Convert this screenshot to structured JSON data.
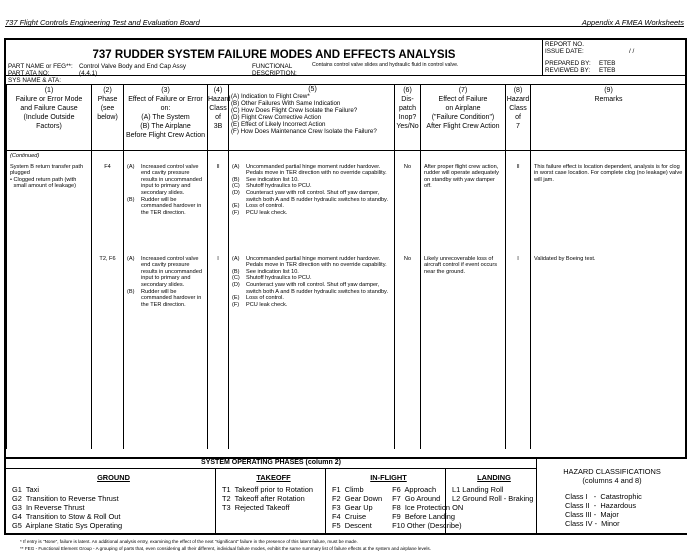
{
  "header": {
    "left": "737 Flight Controls Engineering Test and Evaluation Board",
    "right": "Appendix A   FMEA Worksheets"
  },
  "title": "737 RUDDER SYSTEM FAILURE MODES AND EFFECTS ANALYSIS",
  "fields": {
    "part_name_label": "PART NAME or FEG**:",
    "part_name": "Control Valve Body and End Cap Assy",
    "ata_label": "PART ATA NO:",
    "ata": "(4.4.1)",
    "sys_label": "SYS NAME & ATA:",
    "func_label1": "FUNCTIONAL",
    "func_label2": "DESCRIPTION:",
    "func": "Contains control valve slides and hydraulic fluid in control valve."
  },
  "report": {
    "report_no": "REPORT NO.",
    "issue_label": "ISSUE DATE:",
    "issue": "/   /",
    "prepared_label": "PREPARED BY:",
    "prepared": "ETEB",
    "reviewed_label": "REVIEWED BY:",
    "reviewed": "ETEB"
  },
  "columns": [
    "(1)\nFailure or Error Mode\nand Failure Cause\n(Include Outside\nFactors)",
    "(2)\nPhase\n(see\nbelow)",
    "(3)\nEffect of Failure or Error\non:\n(A)  The System\n(B)  The Airplane\nBefore Flight Crew Action",
    "(4)\nHazard\nClass of\n3B",
    "(A)  Indication to Flight Crew*\n(B)  Other Failures With Same Indication\n(C)  How Does Flight Crew Isolate the Failure?\n(D)  Flight Crew Corrective Action\n(E)  Effect of Likely Incorrect Action\n(F)  How Does Maintenance Crew Isolate the Failure?",
    "(6)\nDis-\npatch\nInop?\nYes/No",
    "(7)\nEffect of Failure\non Airplane\n(\"Failure Condition\")\nAfter Flight Crew Action",
    "(8)\nHazard\nClass of\n7",
    "(9)\nRemarks"
  ],
  "col5_num": "(5)",
  "continued": "(Continued)",
  "rows": [
    {
      "mode": "System B return transfer path plugged",
      "bullet": "Clogged return path (with small amount of leakage)",
      "phase": "F4",
      "effA": "Increased control valve end cavity pressure results in uncommanded input to primary and secondary slides.",
      "effB": "Rudder will be commanded hardover in the TER direction.",
      "haz3": "II",
      "A": "Uncommanded partial hinge moment rudder hardover. Pedals move in TER direction with no override capability.",
      "B": "See indication list 10.",
      "C": "Shutoff hydraulics to PCU.",
      "D": "Counteract yaw with roll control.  Shut off yaw damper, switch both A and B rudder hydraulic switches to standby.",
      "E": "Loss of control.",
      "F": "PCU leak check.",
      "dispatch": "No",
      "eff7": "After proper flight crew action, rudder will operate adequately on standby with yaw damper off.",
      "haz7": "II",
      "remarks": "This failure effect is location dependent, analysis is for clog in worst case location. For complete clog (no leakage) valve will jam."
    },
    {
      "mode": "",
      "bullet": "",
      "phase": "T2, F6",
      "effA": "Increased control valve end cavity pressure results in uncommanded input to primary and secondary slides.",
      "effB": "Rudder will be commanded hardover in the TER direction.",
      "haz3": "I",
      "A": "Uncommanded partial hinge moment rudder hardover. Pedals move in TER direction with no override capability.",
      "B": "See indication list 10.",
      "C": "Shutoff hydraulics to PCU.",
      "D": "Counteract yaw with roll control.  Shut off yaw damper, switch both A and B rudder hydraulic switches to standby.",
      "E": "Loss of control.",
      "F": "PCU leak check.",
      "dispatch": "No",
      "eff7": "Likely unrecoverable loss of aircraft control if event occurs near the ground.",
      "haz7": "I",
      "remarks": "Validated by Boeing test."
    }
  ],
  "phases": {
    "title": "SYSTEM OPERATING PHASES (column 2)",
    "ground": {
      "title": "GROUND",
      "items": [
        "G1  Taxi",
        "G2  Transition to Reverse Thrust",
        "G3  In Reverse Thrust",
        "G4  Transition to Stow & Roll Out",
        "G5  Airplane Static Sys Operating"
      ]
    },
    "takeoff": {
      "title": "TAKEOFF",
      "items": [
        "T1  Takeoff prior to Rotation",
        "T2  Takeoff after Rotation",
        "T3  Rejected Takeoff"
      ]
    },
    "inflight": {
      "title": "IN-FLIGHT",
      "items": [
        "F1  Climb",
        "F2  Gear Down",
        "F3  Gear Up",
        "F4  Cruise",
        "F5  Descent"
      ],
      "items2": [
        "F6  Approach",
        "F7  Go Around",
        "F8  Ice Protection ON",
        "F9  Before Landing",
        "F10 Other (Describe)"
      ]
    },
    "landing": {
      "title": "LANDING",
      "items": [
        "L1 Landing Roll",
        "L2 Ground Roll - Braking"
      ]
    }
  },
  "hazard": {
    "title": "HAZARD CLASSIFICATIONS",
    "subtitle": "(columns 4 and 8)",
    "items": [
      "Class I   -  Catastrophic",
      "Class II  -  Hazardous",
      "Class III -  Major",
      "Class IV -  Minor"
    ]
  },
  "footnotes": [
    "*  If entry is \"None\", failure is latent.  An additional analysis entry, examining the effect of the next \"significant\" failure in the presence of this latent failure, must be made.",
    "**  FEG - Functional Element Group - A grouping of parts that, even considering all their different, individual failure modes, exhibit the same summary list of failure effects at the system and airplane levels."
  ]
}
